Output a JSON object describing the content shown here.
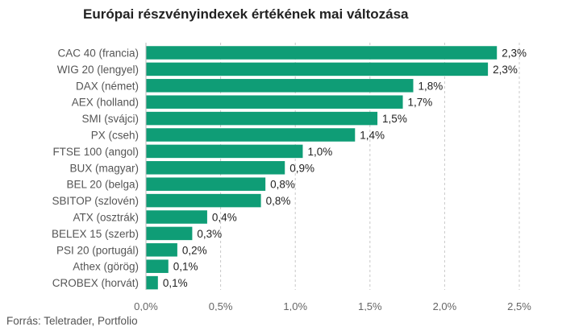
{
  "chart_data": {
    "type": "bar",
    "orientation": "horizontal",
    "title": "Európai részvényindexek értékének mai változása",
    "categories": [
      "CAC 40 (francia)",
      "WIG 20 (lengyel)",
      "DAX (német)",
      "AEX (holland)",
      "SMI (svájci)",
      "PX (cseh)",
      "FTSE 100 (angol)",
      "BUX (magyar)",
      "BEL 20 (belga)",
      "SBITOP (szlovén)",
      "ATX (osztrák)",
      "BELEX 15 (szerb)",
      "PSI 20 (portugál)",
      "Athex (görög)",
      "CROBEX (horvát)"
    ],
    "values": [
      2.35,
      2.29,
      1.79,
      1.72,
      1.55,
      1.4,
      1.05,
      0.93,
      0.8,
      0.77,
      0.41,
      0.31,
      0.21,
      0.15,
      0.08
    ],
    "value_labels": [
      "2,3%",
      "2,3%",
      "1,8%",
      "1,7%",
      "1,5%",
      "1,4%",
      "1,0%",
      "0,9%",
      "0,8%",
      "0,8%",
      "0,4%",
      "0,3%",
      "0,2%",
      "0,1%",
      "0,1%"
    ],
    "xlim": [
      0,
      2.5
    ],
    "ticks": [
      0,
      0.5,
      1.0,
      1.5,
      2.0,
      2.5
    ],
    "tick_labels": [
      "0,0%",
      "0,5%",
      "1,0%",
      "1,5%",
      "2,0%",
      "2,5%"
    ],
    "grid": "vertical-dashed",
    "bar_color": "#0f9d76",
    "source": "Forrás: Teletrader, Portfolio"
  }
}
